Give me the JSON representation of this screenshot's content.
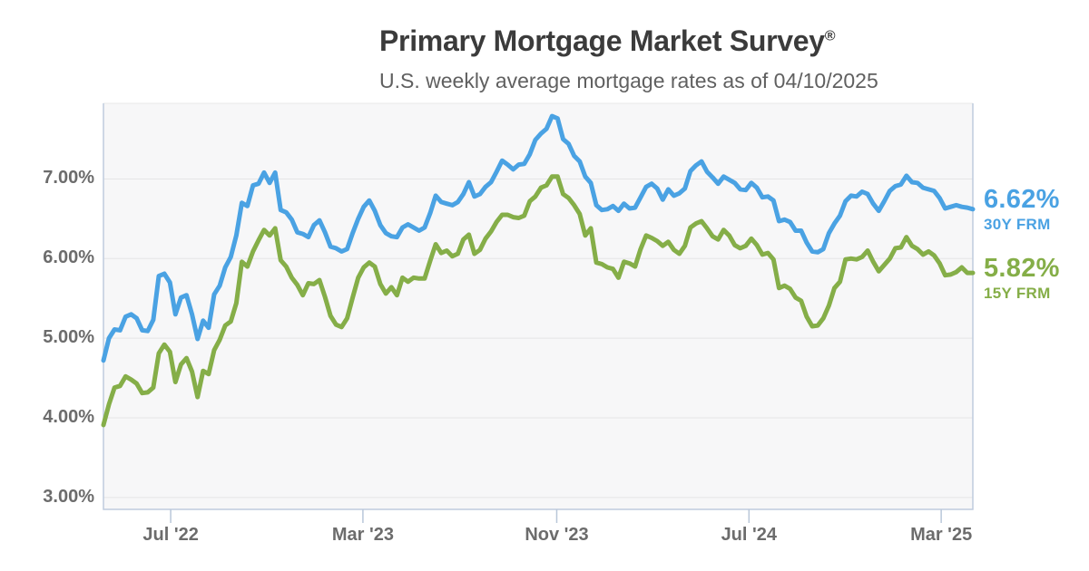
{
  "header": {
    "title": "Primary Mortgage Market Survey",
    "title_mark": "®",
    "subtitle": "U.S. weekly average mortgage rates as of 04/10/2025"
  },
  "legend": {
    "rate_30y": "6.62%",
    "label_30y": "30Y FRM",
    "rate_15y": "5.82%",
    "label_15y": "15Y FRM"
  },
  "colors": {
    "title": "#3b3b3b",
    "subtitle": "#606060",
    "axis_label": "#6c6c6c",
    "blue_30y": "#4aa2e3",
    "green_15y": "#85ae48",
    "plot_background": "#f7f7f8",
    "grid_line": "#e5e5e6",
    "plot_border": "#bfccdd",
    "plot_border_top": "#e8e8e8",
    "tick_mark": "#b9c7d9"
  },
  "chart_data": {
    "type": "line",
    "title": "Primary Mortgage Market Survey®",
    "subtitle": "U.S. weekly average mortgage rates as of 04/10/2025",
    "frequency": "weekly",
    "x_start": "2022-04-07",
    "x_end": "2025-04-10",
    "ylim": [
      2.85,
      7.95
    ],
    "grid": "horizontal",
    "legend_position": "right",
    "yticks": [
      {
        "value": 7,
        "label": "7.00%"
      },
      {
        "value": 6,
        "label": "6.00%"
      },
      {
        "value": 5,
        "label": "5.00%"
      },
      {
        "value": 4,
        "label": "4.00%"
      },
      {
        "value": 3,
        "label": "3.00%"
      }
    ],
    "xticks": [
      {
        "label": "Jul '22",
        "date": "2022-07-01"
      },
      {
        "label": "Mar '23",
        "date": "2023-03-01"
      },
      {
        "label": "Nov '23",
        "date": "2023-11-01"
      },
      {
        "label": "Jul '24",
        "date": "2024-07-01"
      },
      {
        "label": "Mar '25",
        "date": "2025-03-01"
      }
    ],
    "series": [
      {
        "name": "30Y FRM",
        "color": "#4aa2e3",
        "latest_label": "6.62%",
        "values": [
          4.72,
          5.0,
          5.11,
          5.1,
          5.27,
          5.3,
          5.25,
          5.1,
          5.09,
          5.23,
          5.78,
          5.81,
          5.7,
          5.3,
          5.51,
          5.54,
          5.3,
          4.99,
          5.22,
          5.13,
          5.55,
          5.66,
          5.89,
          6.02,
          6.29,
          6.7,
          6.66,
          6.92,
          6.94,
          7.08,
          6.95,
          7.08,
          6.61,
          6.58,
          6.49,
          6.33,
          6.31,
          6.27,
          6.42,
          6.48,
          6.33,
          6.15,
          6.13,
          6.09,
          6.12,
          6.32,
          6.5,
          6.65,
          6.73,
          6.6,
          6.42,
          6.32,
          6.28,
          6.27,
          6.39,
          6.43,
          6.39,
          6.35,
          6.39,
          6.57,
          6.79,
          6.71,
          6.69,
          6.67,
          6.71,
          6.81,
          6.96,
          6.78,
          6.81,
          6.9,
          6.96,
          7.09,
          7.23,
          7.18,
          7.12,
          7.18,
          7.19,
          7.31,
          7.49,
          7.57,
          7.63,
          7.79,
          7.76,
          7.5,
          7.44,
          7.29,
          7.22,
          7.03,
          6.95,
          6.67,
          6.61,
          6.62,
          6.66,
          6.6,
          6.69,
          6.63,
          6.64,
          6.77,
          6.9,
          6.94,
          6.88,
          6.74,
          6.87,
          6.79,
          6.82,
          6.88,
          7.1,
          7.17,
          7.22,
          7.09,
          7.02,
          6.94,
          7.03,
          6.99,
          6.95,
          6.87,
          6.86,
          6.95,
          6.89,
          6.77,
          6.78,
          6.73,
          6.47,
          6.49,
          6.46,
          6.35,
          6.35,
          6.2,
          6.09,
          6.08,
          6.12,
          6.32,
          6.44,
          6.54,
          6.72,
          6.79,
          6.78,
          6.84,
          6.81,
          6.69,
          6.6,
          6.72,
          6.85,
          6.91,
          6.93,
          7.04,
          6.96,
          6.95,
          6.89,
          6.87,
          6.85,
          6.76,
          6.63,
          6.65,
          6.67,
          6.65,
          6.64,
          6.62
        ]
      },
      {
        "name": "15Y FRM",
        "color": "#85ae48",
        "latest_label": "5.82%",
        "values": [
          3.91,
          4.17,
          4.38,
          4.4,
          4.52,
          4.48,
          4.43,
          4.31,
          4.32,
          4.38,
          4.81,
          4.92,
          4.83,
          4.45,
          4.67,
          4.75,
          4.58,
          4.26,
          4.59,
          4.55,
          4.85,
          4.98,
          5.16,
          5.21,
          5.44,
          5.96,
          5.9,
          6.09,
          6.23,
          6.36,
          6.29,
          6.38,
          5.98,
          5.9,
          5.76,
          5.67,
          5.54,
          5.69,
          5.68,
          5.73,
          5.52,
          5.28,
          5.17,
          5.14,
          5.25,
          5.51,
          5.76,
          5.89,
          5.95,
          5.9,
          5.68,
          5.56,
          5.64,
          5.54,
          5.76,
          5.71,
          5.76,
          5.75,
          5.75,
          5.97,
          6.18,
          6.07,
          6.1,
          6.03,
          6.06,
          6.24,
          6.3,
          6.06,
          6.11,
          6.25,
          6.34,
          6.46,
          6.55,
          6.55,
          6.52,
          6.51,
          6.54,
          6.72,
          6.78,
          6.89,
          6.92,
          7.03,
          7.03,
          6.81,
          6.76,
          6.67,
          6.56,
          6.29,
          6.38,
          5.95,
          5.93,
          5.89,
          5.87,
          5.76,
          5.96,
          5.94,
          5.9,
          6.12,
          6.29,
          6.26,
          6.22,
          6.16,
          6.21,
          6.11,
          6.06,
          6.16,
          6.39,
          6.44,
          6.47,
          6.38,
          6.28,
          6.24,
          6.36,
          6.29,
          6.17,
          6.13,
          6.16,
          6.25,
          6.17,
          6.05,
          6.07,
          5.99,
          5.63,
          5.66,
          5.62,
          5.51,
          5.47,
          5.27,
          5.15,
          5.16,
          5.25,
          5.41,
          5.63,
          5.71,
          5.99,
          6.0,
          5.99,
          6.02,
          6.1,
          5.96,
          5.84,
          5.92,
          6.0,
          6.13,
          6.14,
          6.27,
          6.16,
          6.12,
          6.05,
          6.09,
          6.04,
          5.94,
          5.79,
          5.8,
          5.83,
          5.89,
          5.82,
          5.82
        ]
      }
    ]
  }
}
